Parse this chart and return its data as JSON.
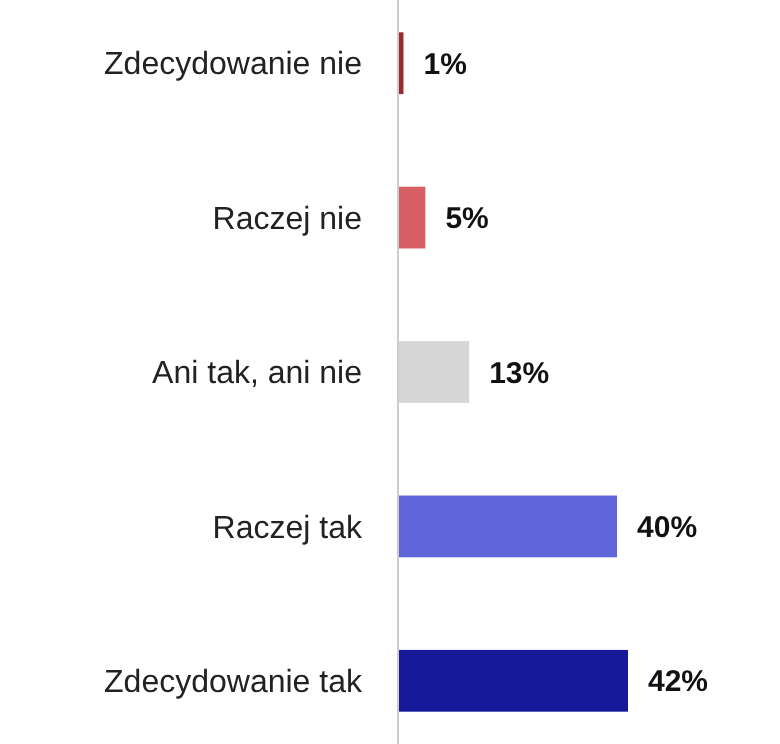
{
  "chart_data": {
    "type": "bar",
    "orientation": "horizontal",
    "categories": [
      "Zdecydowanie nie",
      "Raczej nie",
      "Ani tak, ani nie",
      "Raczej tak",
      "Zdecydowanie tak"
    ],
    "values": [
      1,
      5,
      13,
      40,
      42
    ],
    "colors": [
      "#9b2b2b",
      "#d66064",
      "#d6d6d6",
      "#6065d9",
      "#15199a"
    ],
    "value_labels": [
      "1%",
      "5%",
      "13%",
      "40%",
      "42%"
    ]
  }
}
